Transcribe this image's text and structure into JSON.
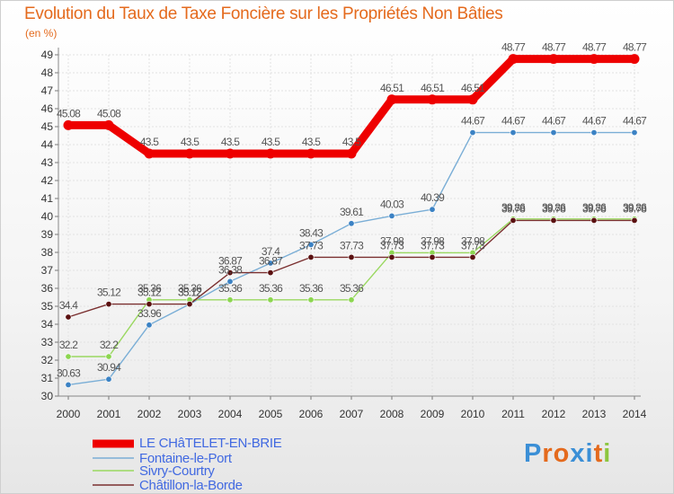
{
  "title": "Evolution du Taux de Taxe Foncière sur les Propriétés Non Bâties",
  "unit_label": "(en %)",
  "logo": {
    "text": "Proxiti",
    "colors": [
      "#3b8fd6",
      "#e46a1d",
      "#e46a1d",
      "#3b8fd6",
      "#3b8fd6",
      "#e46a1d",
      "#8cc63f"
    ]
  },
  "chart_data": {
    "type": "line",
    "title": "Evolution du Taux de Taxe Foncière sur les Propriétés Non Bâties",
    "ylabel": "(en %)",
    "xlabel": "",
    "ylim": [
      30,
      49
    ],
    "yticks": [
      30,
      31,
      32,
      33,
      34,
      35,
      36,
      37,
      38,
      39,
      40,
      41,
      42,
      43,
      44,
      45,
      46,
      47,
      48,
      49
    ],
    "grid": true,
    "x": [
      2000,
      2001,
      2002,
      2003,
      2004,
      2005,
      2006,
      2007,
      2008,
      2009,
      2010,
      2011,
      2012,
      2013,
      2014
    ],
    "series": [
      {
        "name": "LE CHâTELET-EN-BRIE",
        "color": "#ee0000",
        "point_color": "#ee0000",
        "bold": true,
        "values": [
          45.08,
          45.08,
          43.5,
          43.5,
          43.5,
          43.5,
          43.5,
          43.5,
          46.51,
          46.51,
          46.51,
          48.77,
          48.77,
          48.77,
          48.77
        ]
      },
      {
        "name": "Fontaine-le-Port",
        "color": "#7aaed6",
        "point_color": "#3b82c4",
        "bold": false,
        "values": [
          30.63,
          30.94,
          33.96,
          35.12,
          36.38,
          37.4,
          38.43,
          39.61,
          40.03,
          40.39,
          44.67,
          44.67,
          44.67,
          44.67,
          44.67
        ]
      },
      {
        "name": "Sivry-Courtry",
        "color": "#9ad860",
        "point_color": "#8cd650",
        "bold": false,
        "values": [
          32.2,
          32.2,
          35.36,
          35.36,
          35.36,
          35.36,
          35.36,
          35.36,
          37.98,
          37.98,
          37.98,
          39.86,
          39.86,
          39.86,
          39.86
        ]
      },
      {
        "name": "Châtillon-la-Borde",
        "color": "#7a2f2f",
        "point_color": "#5a1010",
        "bold": false,
        "values": [
          34.4,
          35.12,
          35.12,
          35.12,
          36.87,
          36.87,
          37.73,
          37.73,
          37.73,
          37.73,
          37.73,
          39.78,
          39.78,
          39.78,
          39.78
        ]
      }
    ]
  }
}
